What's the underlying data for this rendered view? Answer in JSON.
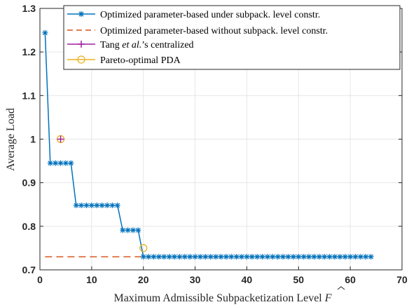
{
  "chart_data": {
    "type": "line",
    "xlabel": "Maximum Admissible Subpacketization Level",
    "xlabel_symbol": "F",
    "ylabel": "Average Load",
    "xlim": [
      0,
      70
    ],
    "ylim": [
      0.7,
      1.3
    ],
    "xticks": [
      0,
      10,
      20,
      30,
      40,
      50,
      60,
      70
    ],
    "yticks": [
      0.7,
      0.8,
      0.9,
      1,
      1.1,
      1.2,
      1.3
    ],
    "xtick_labels": [
      "0",
      "10",
      "20",
      "30",
      "40",
      "50",
      "60",
      "70"
    ],
    "ytick_labels": [
      "0.7",
      "0.8",
      "0.9",
      "1",
      "1.1",
      "1.2",
      "1.3"
    ],
    "grid": true,
    "legend_position": "top-right",
    "series": [
      {
        "name": "Optimized parameter-based under subpack. level constr.",
        "color": "#0072BD",
        "style": "solid",
        "marker": "asterisk",
        "x": [
          1,
          2,
          3,
          4,
          5,
          6,
          7,
          8,
          9,
          10,
          11,
          12,
          13,
          14,
          15,
          16,
          17,
          18,
          19,
          20,
          21,
          22,
          23,
          24,
          25,
          26,
          27,
          28,
          29,
          30,
          31,
          32,
          33,
          34,
          35,
          36,
          37,
          38,
          39,
          40,
          41,
          42,
          43,
          44,
          45,
          46,
          47,
          48,
          49,
          50,
          51,
          52,
          53,
          54,
          55,
          56,
          57,
          58,
          59,
          60,
          61,
          62,
          63,
          64
        ],
        "y": [
          1.244,
          0.945,
          0.945,
          0.945,
          0.945,
          0.945,
          0.848,
          0.848,
          0.848,
          0.848,
          0.848,
          0.848,
          0.848,
          0.848,
          0.848,
          0.791,
          0.791,
          0.791,
          0.791,
          0.73,
          0.73,
          0.73,
          0.73,
          0.73,
          0.73,
          0.73,
          0.73,
          0.73,
          0.73,
          0.73,
          0.73,
          0.73,
          0.73,
          0.73,
          0.73,
          0.73,
          0.73,
          0.73,
          0.73,
          0.73,
          0.73,
          0.73,
          0.73,
          0.73,
          0.73,
          0.73,
          0.73,
          0.73,
          0.73,
          0.73,
          0.73,
          0.73,
          0.73,
          0.73,
          0.73,
          0.73,
          0.73,
          0.73,
          0.73,
          0.73,
          0.73,
          0.73,
          0.73,
          0.73
        ]
      },
      {
        "name": "Optimized parameter-based without subpack. level constr.",
        "color": "#D95319",
        "style": "dashed",
        "marker": "none",
        "x": [
          1,
          64
        ],
        "y": [
          0.73,
          0.73
        ]
      },
      {
        "name_parts": [
          "Tang ",
          "et al.",
          "’s centralized"
        ],
        "color": "#A020A0",
        "style": "solid",
        "marker": "plus",
        "x": [
          4
        ],
        "y": [
          1.0
        ]
      },
      {
        "name": "Pareto-optimal PDA",
        "color": "#EDB120",
        "style": "solid",
        "marker": "circle",
        "x": [
          4,
          20
        ],
        "y": [
          1.0,
          0.75
        ]
      }
    ]
  }
}
